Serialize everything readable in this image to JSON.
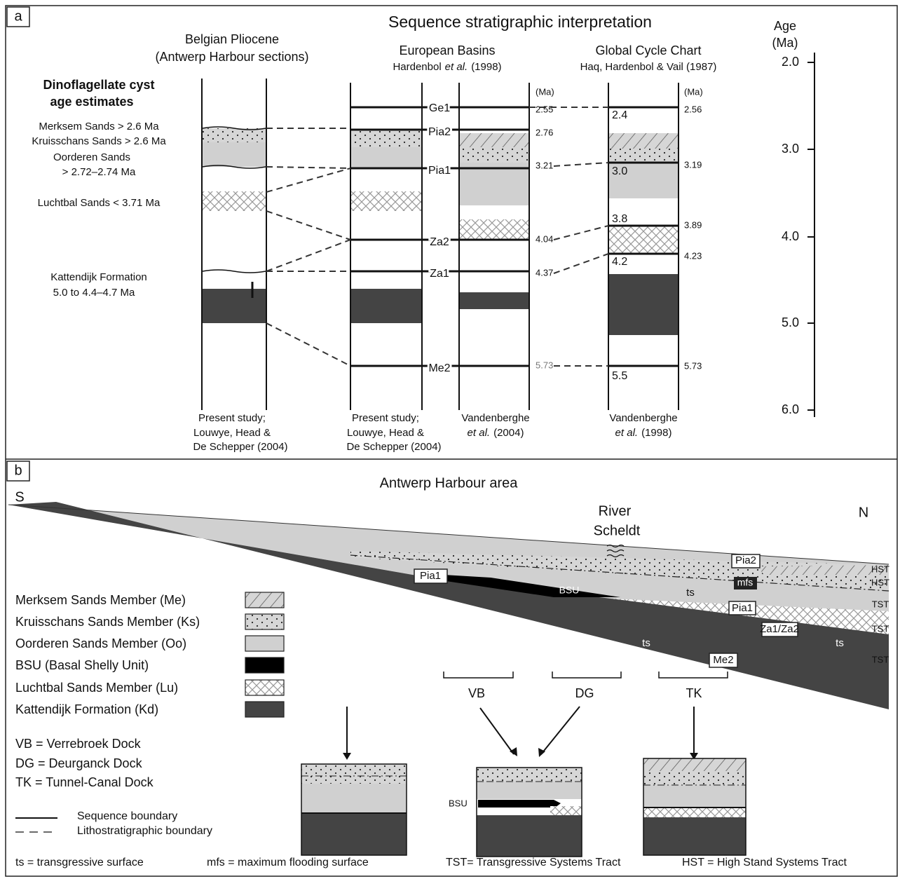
{
  "panel_a": {
    "label": "a",
    "title": "Sequence stratigraphic interpretation",
    "age_axis": {
      "title": [
        "Age",
        "(Ma)"
      ],
      "ticks": [
        "2.0",
        "3.0",
        "4.0",
        "5.0",
        "6.0"
      ]
    },
    "notes": {
      "heading": [
        "Dinoflagellate cyst",
        "age estimates"
      ],
      "items": [
        "Merksem Sands > 2.6 Ma",
        "Kruisschans Sands > 2.6 Ma",
        "Oorderen Sands",
        "> 2.72–2.74 Ma",
        "Luchtbal Sands < 3.71 Ma",
        "Kattendijk Formation",
        "5.0 to 4.4–4.7 Ma"
      ]
    },
    "belgian_heading": [
      "Belgian Pliocene",
      "(Antwerp Harbour sections)"
    ],
    "european_heading": {
      "title": "European Basins",
      "ref": [
        "Hardenbol",
        "et al.",
        "(1998)"
      ]
    },
    "global_heading": {
      "title": "Global Cycle Chart",
      "ref": "Haq, Hardenbol & Vail (1987)"
    },
    "boundaries": [
      "Ge1",
      "Pia2",
      "Pia1",
      "Za2",
      "Za1",
      "Me2"
    ],
    "european_ages": {
      "unit": "(Ma)",
      "values": [
        "2.55",
        "2.76",
        "3.21",
        "4.04",
        "4.37",
        "5.73"
      ]
    },
    "global_inner": [
      "2.4",
      "3.0",
      "3.8",
      "4.2",
      "5.5"
    ],
    "global_ages": {
      "unit": "(Ma)",
      "values": [
        "2.56",
        "3.19",
        "3.89",
        "4.23",
        "5.73"
      ]
    },
    "sources": [
      [
        "Present study;",
        "Louwye, Head &",
        "De Schepper (2004)"
      ],
      [
        "Present study;",
        "Louwye, Head &",
        "De Schepper (2004)"
      ],
      [
        "Vandenberghe",
        [
          "et al.",
          "(2004)"
        ]
      ],
      [
        "Vandenberghe",
        [
          "et al.",
          "(1998)"
        ]
      ]
    ]
  },
  "panel_b": {
    "label": "b",
    "title": "Antwerp Harbour area",
    "south": "S",
    "north": "N",
    "river": [
      "River",
      "Scheldt"
    ],
    "section_labels": {
      "pia1_left": "Pia1",
      "bsu": "BSU",
      "ts": [
        "ts",
        "ts",
        "ts"
      ],
      "pia2": "Pia2",
      "mfs": "mfs",
      "pia1_right": "Pia1",
      "za": "Za1/Za2",
      "me2": "Me2"
    },
    "tracts": [
      "HST",
      "HST",
      "TST",
      "TST",
      "TST"
    ],
    "docks": [
      "VB",
      "DG",
      "TK"
    ],
    "legend": [
      "Merksem Sands Member (Me)",
      "Kruisschans Sands Member (Ks)",
      "Oorderen Sands Member (Oo)",
      "BSU (Basal Shelly Unit)",
      "Luchtbal Sands Member (Lu)",
      "Kattendijk Formation (Kd)"
    ],
    "abbreviations": [
      "VB = Verrebroek Dock",
      "DG = Deurganck Dock",
      "TK = Tunnel-Canal Dock"
    ],
    "line_key": [
      "Sequence boundary",
      "Lithostratigraphic boundary"
    ],
    "inset_label": "BSU",
    "footnotes": [
      "ts = transgressive surface",
      "mfs = maximum flooding surface",
      "TST= Transgressive Systems Tract",
      "HST = High Stand Systems Tract"
    ]
  }
}
